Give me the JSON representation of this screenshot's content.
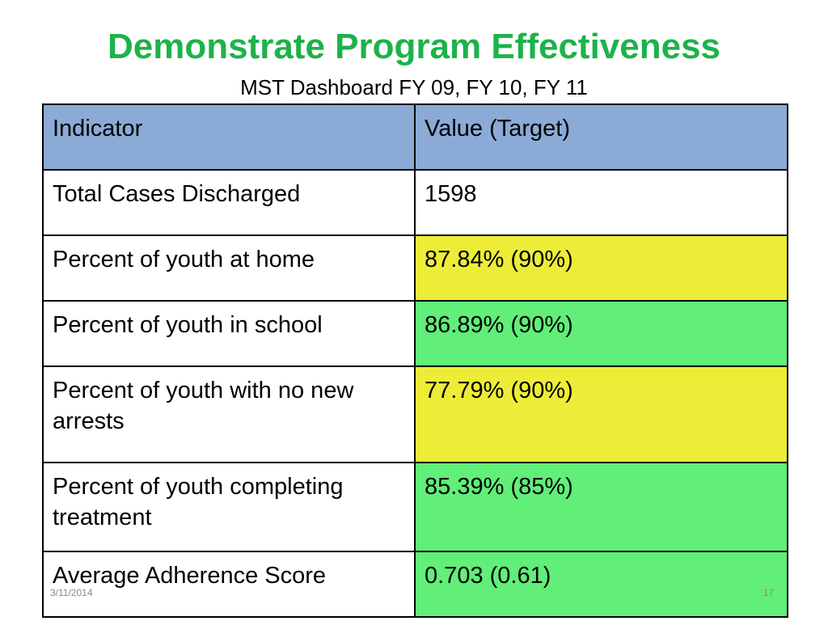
{
  "slide": {
    "title": "Demonstrate Program Effectiveness",
    "subtitle": "MST Dashboard FY 09, FY 10, FY 11",
    "footer_date": "3/11/2014",
    "footer_page": "17"
  },
  "table": {
    "headers": [
      "Indicator",
      "Value (Target)"
    ],
    "rows": [
      {
        "indicator": "Total Cases Discharged",
        "value": "1598",
        "status": "none"
      },
      {
        "indicator": "Percent of youth at home",
        "value": "87.84% (90%)",
        "status": "yellow"
      },
      {
        "indicator": "Percent of youth in school",
        "value": "86.89% (90%)",
        "status": "green"
      },
      {
        "indicator": "Percent of youth with no new arrests",
        "value": "77.79% (90%)",
        "status": "yellow"
      },
      {
        "indicator": "Percent of youth completing treatment",
        "value": "85.39% (85%)",
        "status": "green"
      },
      {
        "indicator": "Average Adherence Score",
        "value": "0.703 (0.61)",
        "status": "green"
      }
    ]
  },
  "colors": {
    "title": "#1db24a",
    "header_bg": "#8caad6",
    "yellow": "#eded38",
    "green": "#61ee79",
    "white": "#ffffff"
  }
}
